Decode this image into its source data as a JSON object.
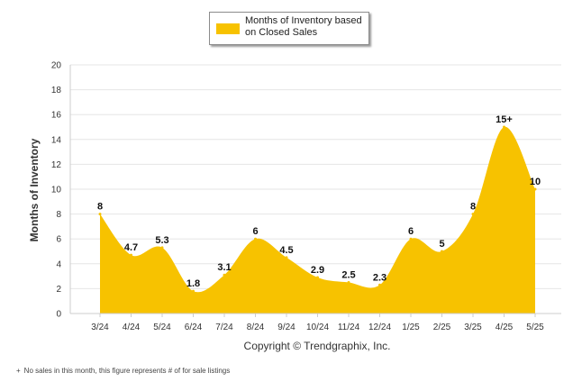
{
  "legend": {
    "label": "Months of Inventory based on Closed Sales"
  },
  "footnote": {
    "marker": "+",
    "text": "No sales in this month, this figure represents # of for sale listings"
  },
  "colors": {
    "fill": "#F7C200",
    "grid": "#e6e6e6",
    "axis": "#cccccc",
    "text": "#333333"
  },
  "chart_data": {
    "type": "area",
    "title": "",
    "xlabel": "",
    "ylabel": "Months of Inventory",
    "caption": "Copyright © Trendgraphix, Inc.",
    "ylim": [
      0,
      20
    ],
    "yticks": [
      0,
      2,
      4,
      6,
      8,
      10,
      12,
      14,
      16,
      18,
      20
    ],
    "grid": true,
    "legend_position": "top-center",
    "categories": [
      "3/24",
      "4/24",
      "5/24",
      "6/24",
      "7/24",
      "8/24",
      "9/24",
      "10/24",
      "11/24",
      "12/24",
      "1/25",
      "2/25",
      "3/25",
      "4/25",
      "5/25"
    ],
    "series": [
      {
        "name": "Months of Inventory based on Closed Sales",
        "values": [
          8,
          4.7,
          5.3,
          1.8,
          3.1,
          6,
          4.5,
          2.9,
          2.5,
          2.3,
          6,
          5,
          8,
          15,
          10
        ],
        "labels": [
          "8",
          "4.7",
          "5.3",
          "1.8",
          "3.1",
          "6",
          "4.5",
          "2.9",
          "2.5",
          "2.3",
          "6",
          "5",
          "8",
          "15+",
          "10"
        ]
      }
    ]
  }
}
